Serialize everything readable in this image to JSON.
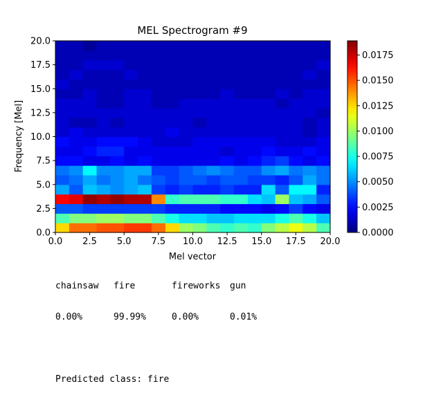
{
  "chart_data": {
    "type": "heatmap",
    "title": "MEL Spectrogram #9",
    "xlabel": "Mel vector",
    "ylabel": "Frequency [Mel]",
    "xlim": [
      0,
      20
    ],
    "ylim": [
      0,
      20
    ],
    "x_ticks": [
      "0.0",
      "2.5",
      "5.0",
      "7.5",
      "10.0",
      "12.5",
      "15.0",
      "17.5",
      "20.0"
    ],
    "y_ticks": [
      "0.0",
      "2.5",
      "5.0",
      "7.5",
      "10.0",
      "12.5",
      "15.0",
      "17.5",
      "20.0"
    ],
    "colormap": "jet",
    "color_range": [
      0.0,
      0.0189
    ],
    "colorbar_ticks": [
      "0.0000",
      "0.0025",
      "0.0050",
      "0.0075",
      "0.0100",
      "0.0125",
      "0.0150",
      "0.0175"
    ],
    "grid": false,
    "rows_bottom_to_top": [
      [
        0.0125,
        0.0145,
        0.0145,
        0.015,
        0.015,
        0.0155,
        0.0155,
        0.0145,
        0.0125,
        0.01,
        0.0095,
        0.0085,
        0.008,
        0.0085,
        0.008,
        0.0095,
        0.0105,
        0.0115,
        0.0105,
        0.0085
      ],
      [
        0.0085,
        0.0095,
        0.0095,
        0.01,
        0.01,
        0.0095,
        0.0095,
        0.0085,
        0.0075,
        0.0065,
        0.0065,
        0.006,
        0.006,
        0.0065,
        0.0065,
        0.0065,
        0.0075,
        0.0085,
        0.0075,
        0.006
      ],
      [
        0.004,
        0.004,
        0.0035,
        0.0035,
        0.0035,
        0.0035,
        0.0035,
        0.0035,
        0.003,
        0.003,
        0.003,
        0.003,
        0.0025,
        0.0025,
        0.0025,
        0.002,
        0.0025,
        0.0035,
        0.0025,
        0.002
      ],
      [
        0.0165,
        0.017,
        0.0185,
        0.018,
        0.0185,
        0.018,
        0.018,
        0.014,
        0.008,
        0.0085,
        0.0085,
        0.0085,
        0.008,
        0.008,
        0.0065,
        0.006,
        0.01,
        0.006,
        0.0055,
        0.004
      ],
      [
        0.0055,
        0.004,
        0.006,
        0.0055,
        0.005,
        0.0055,
        0.006,
        0.0035,
        0.003,
        0.0035,
        0.003,
        0.003,
        0.0035,
        0.003,
        0.003,
        0.0065,
        0.004,
        0.007,
        0.007,
        0.003
      ],
      [
        0.004,
        0.0045,
        0.0055,
        0.0045,
        0.005,
        0.0055,
        0.0045,
        0.004,
        0.0035,
        0.004,
        0.004,
        0.0035,
        0.004,
        0.004,
        0.0035,
        0.0035,
        0.003,
        0.004,
        0.0055,
        0.0045
      ],
      [
        0.0045,
        0.005,
        0.007,
        0.005,
        0.005,
        0.0055,
        0.0055,
        0.0035,
        0.0035,
        0.004,
        0.0045,
        0.005,
        0.0045,
        0.004,
        0.004,
        0.005,
        0.0055,
        0.0045,
        0.005,
        0.0045
      ],
      [
        0.0025,
        0.0025,
        0.002,
        0.002,
        0.0025,
        0.002,
        0.0025,
        0.002,
        0.002,
        0.002,
        0.002,
        0.002,
        0.0025,
        0.002,
        0.0025,
        0.003,
        0.0035,
        0.0025,
        0.002,
        0.0025
      ],
      [
        0.002,
        0.002,
        0.0025,
        0.003,
        0.003,
        0.002,
        0.002,
        0.002,
        0.002,
        0.002,
        0.002,
        0.002,
        0.0015,
        0.002,
        0.002,
        0.0025,
        0.002,
        0.002,
        0.0025,
        0.002
      ],
      [
        0.0025,
        0.002,
        0.002,
        0.0025,
        0.0025,
        0.0025,
        0.002,
        0.0015,
        0.0015,
        0.0015,
        0.002,
        0.002,
        0.002,
        0.002,
        0.002,
        0.002,
        0.0015,
        0.0015,
        0.0015,
        0.002
      ],
      [
        0.0015,
        0.002,
        0.0015,
        0.0015,
        0.0015,
        0.0015,
        0.0015,
        0.0015,
        0.002,
        0.0015,
        0.0015,
        0.0015,
        0.0015,
        0.0015,
        0.0015,
        0.0015,
        0.0015,
        0.0015,
        0.001,
        0.0015
      ],
      [
        0.0015,
        0.001,
        0.001,
        0.0015,
        0.001,
        0.0015,
        0.0015,
        0.0015,
        0.0015,
        0.0015,
        0.001,
        0.0015,
        0.0015,
        0.0015,
        0.0015,
        0.0015,
        0.0015,
        0.0015,
        0.001,
        0.0015
      ],
      [
        0.0015,
        0.0015,
        0.0015,
        0.0015,
        0.0015,
        0.0015,
        0.0015,
        0.0015,
        0.0015,
        0.0015,
        0.0015,
        0.0015,
        0.0015,
        0.0015,
        0.0015,
        0.0015,
        0.0015,
        0.0015,
        0.0015,
        0.001
      ],
      [
        0.0015,
        0.0015,
        0.0015,
        0.001,
        0.001,
        0.0015,
        0.0015,
        0.001,
        0.001,
        0.0015,
        0.0015,
        0.0015,
        0.0015,
        0.0015,
        0.0015,
        0.0015,
        0.001,
        0.0015,
        0.0015,
        0.0015
      ],
      [
        0.001,
        0.001,
        0.0015,
        0.001,
        0.001,
        0.0015,
        0.0015,
        0.001,
        0.001,
        0.001,
        0.001,
        0.001,
        0.0015,
        0.001,
        0.001,
        0.001,
        0.0015,
        0.001,
        0.0015,
        0.0015
      ],
      [
        0.0015,
        0.001,
        0.001,
        0.001,
        0.001,
        0.001,
        0.001,
        0.001,
        0.001,
        0.001,
        0.001,
        0.001,
        0.001,
        0.001,
        0.001,
        0.001,
        0.001,
        0.001,
        0.001,
        0.001
      ],
      [
        0.001,
        0.0015,
        0.001,
        0.001,
        0.001,
        0.0015,
        0.001,
        0.001,
        0.001,
        0.001,
        0.001,
        0.001,
        0.001,
        0.001,
        0.001,
        0.001,
        0.001,
        0.001,
        0.0015,
        0.001
      ],
      [
        0.001,
        0.001,
        0.0015,
        0.0015,
        0.0015,
        0.001,
        0.001,
        0.001,
        0.001,
        0.001,
        0.001,
        0.001,
        0.001,
        0.001,
        0.001,
        0.001,
        0.001,
        0.001,
        0.001,
        0.0015
      ],
      [
        0.001,
        0.001,
        0.001,
        0.001,
        0.001,
        0.001,
        0.001,
        0.001,
        0.001,
        0.001,
        0.001,
        0.001,
        0.001,
        0.001,
        0.001,
        0.001,
        0.001,
        0.001,
        0.001,
        0.001
      ],
      [
        0.001,
        0.001,
        0.0005,
        0.001,
        0.001,
        0.001,
        0.001,
        0.001,
        0.001,
        0.001,
        0.001,
        0.001,
        0.001,
        0.001,
        0.001,
        0.001,
        0.001,
        0.001,
        0.001,
        0.001
      ]
    ]
  },
  "summary": {
    "headers": [
      "chainsaw",
      "fire",
      "fireworks",
      "gun"
    ],
    "values": [
      "0.00%",
      "99.99%",
      "0.00%",
      "0.01%"
    ],
    "predicted": "Predicted class: fire"
  }
}
